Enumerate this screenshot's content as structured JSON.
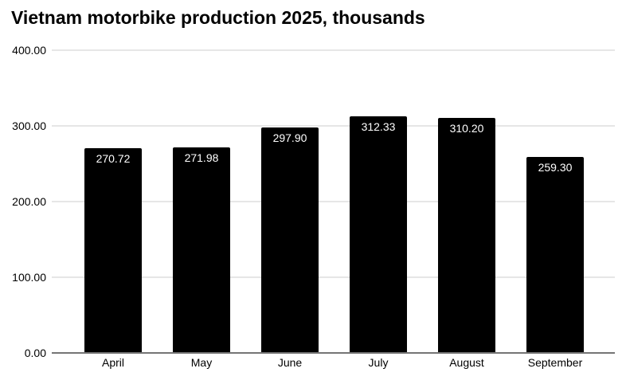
{
  "chart_data": {
    "type": "bar",
    "title": "Vietnam motorbike production 2025, thousands",
    "categories": [
      "April",
      "May",
      "June",
      "July",
      "August",
      "September"
    ],
    "values": [
      270.72,
      271.98,
      297.9,
      312.33,
      310.2,
      259.3
    ],
    "value_labels": [
      "270.72",
      "271.98",
      "297.90",
      "312.33",
      "310.20",
      "259.30"
    ],
    "xlabel": "",
    "ylabel": "",
    "ylim": [
      0,
      400
    ],
    "yticks": [
      0,
      100,
      200,
      300,
      400
    ],
    "ytick_labels": [
      "0.00",
      "100.00",
      "200.00",
      "300.00",
      "400.00"
    ],
    "grid": true,
    "legend": "none",
    "colors": {
      "bar": "#000000",
      "bar_label": "#ffffff",
      "gridline": "#e6e6e6",
      "axis_line": "#757575",
      "text": "#000000",
      "background": "#ffffff"
    }
  }
}
